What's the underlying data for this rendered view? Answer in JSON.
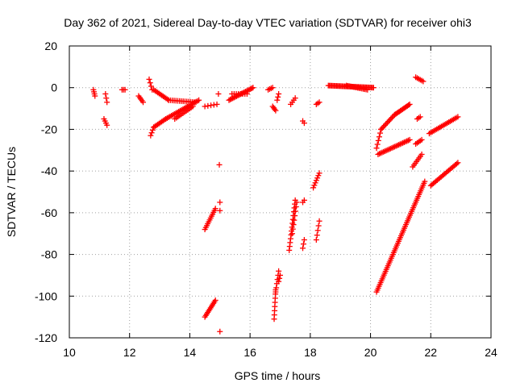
{
  "chart_data": {
    "type": "scatter",
    "title": "Day 362 of 2021, Sidereal Day-to-day VTEC variation (SDTVAR) for receiver ohi3",
    "xlabel": "GPS time / hours",
    "ylabel": "SDTVAR / TECUs",
    "xlim": [
      10,
      24
    ],
    "ylim": [
      -120,
      20
    ],
    "xticks": [
      "10",
      "12",
      "14",
      "16",
      "18",
      "20",
      "22",
      "24"
    ],
    "yticks": [
      "20",
      "0",
      "-20",
      "-40",
      "-60",
      "-80",
      "-100",
      "-120"
    ],
    "grid": true,
    "marker": "plus",
    "color": "#ff0000",
    "segments": [
      {
        "x0": 10.8,
        "y0": -1,
        "x1": 10.85,
        "y1": -4,
        "n": 4
      },
      {
        "x0": 11.2,
        "y0": -3,
        "x1": 11.25,
        "y1": -7,
        "n": 3
      },
      {
        "x0": 11.15,
        "y0": -15,
        "x1": 11.25,
        "y1": -18,
        "n": 4
      },
      {
        "x0": 11.75,
        "y0": -1,
        "x1": 11.85,
        "y1": -1,
        "n": 3
      },
      {
        "x0": 12.3,
        "y0": -4,
        "x1": 12.45,
        "y1": -7,
        "n": 5
      },
      {
        "x0": 12.65,
        "y0": 4,
        "x1": 12.75,
        "y1": -1,
        "n": 4
      },
      {
        "x0": 12.8,
        "y0": -1,
        "x1": 13.3,
        "y1": -6,
        "n": 12
      },
      {
        "x0": 13.3,
        "y0": -6,
        "x1": 14.2,
        "y1": -7,
        "n": 16
      },
      {
        "x0": 12.7,
        "y0": -23,
        "x1": 12.8,
        "y1": -19,
        "n": 4
      },
      {
        "x0": 12.8,
        "y0": -19,
        "x1": 13.2,
        "y1": -15,
        "n": 10
      },
      {
        "x0": 13.2,
        "y0": -15,
        "x1": 14.3,
        "y1": -6,
        "n": 24
      },
      {
        "x0": 13.5,
        "y0": -15,
        "x1": 14.1,
        "y1": -9,
        "n": 12
      },
      {
        "x0": 14.5,
        "y0": -9,
        "x1": 14.9,
        "y1": -8,
        "n": 5
      },
      {
        "x0": 14.95,
        "y0": -3,
        "x1": 14.95,
        "y1": -3,
        "n": 1
      },
      {
        "x0": 15.3,
        "y0": -6,
        "x1": 16.1,
        "y1": 0,
        "n": 20
      },
      {
        "x0": 15.4,
        "y0": -3,
        "x1": 15.9,
        "y1": -3,
        "n": 8
      },
      {
        "x0": 16.6,
        "y0": -1,
        "x1": 16.75,
        "y1": 0,
        "n": 4
      },
      {
        "x0": 16.75,
        "y0": -9,
        "x1": 16.85,
        "y1": -11,
        "n": 4
      },
      {
        "x0": 16.9,
        "y0": -6,
        "x1": 16.95,
        "y1": -3,
        "n": 3
      },
      {
        "x0": 17.35,
        "y0": -8,
        "x1": 17.5,
        "y1": -5,
        "n": 4
      },
      {
        "x0": 17.75,
        "y0": -16,
        "x1": 17.8,
        "y1": -17,
        "n": 2
      },
      {
        "x0": 18.2,
        "y0": -8,
        "x1": 18.3,
        "y1": -7,
        "n": 3
      },
      {
        "x0": 18.6,
        "y0": 1,
        "x1": 20.1,
        "y1": 0,
        "n": 40
      },
      {
        "x0": 19.2,
        "y0": 1,
        "x1": 19.9,
        "y1": -1,
        "n": 16
      },
      {
        "x0": 20.2,
        "y0": -29,
        "x1": 20.35,
        "y1": -20,
        "n": 6
      },
      {
        "x0": 20.35,
        "y0": -20,
        "x1": 20.8,
        "y1": -13,
        "n": 12
      },
      {
        "x0": 20.8,
        "y0": -13,
        "x1": 21.3,
        "y1": -8,
        "n": 14
      },
      {
        "x0": 20.25,
        "y0": -32,
        "x1": 21.3,
        "y1": -25,
        "n": 24
      },
      {
        "x0": 21.5,
        "y0": 5,
        "x1": 21.75,
        "y1": 3,
        "n": 6
      },
      {
        "x0": 21.55,
        "y0": -15,
        "x1": 21.65,
        "y1": -14,
        "n": 3
      },
      {
        "x0": 21.4,
        "y0": -38,
        "x1": 21.7,
        "y1": -32,
        "n": 8
      },
      {
        "x0": 21.5,
        "y0": -27,
        "x1": 21.7,
        "y1": -25,
        "n": 5
      },
      {
        "x0": 21.95,
        "y0": -22,
        "x1": 22.9,
        "y1": -14,
        "n": 20
      },
      {
        "x0": 22.0,
        "y0": -47,
        "x1": 22.9,
        "y1": -36,
        "n": 22
      },
      {
        "x0": 20.2,
        "y0": -98,
        "x1": 21.8,
        "y1": -45,
        "n": 60
      },
      {
        "x0": 14.5,
        "y0": -68,
        "x1": 14.85,
        "y1": -58,
        "n": 12
      },
      {
        "x0": 14.5,
        "y0": -110,
        "x1": 14.85,
        "y1": -102,
        "n": 12
      },
      {
        "x0": 14.98,
        "y0": -37,
        "x1": 14.98,
        "y1": -37,
        "n": 1
      },
      {
        "x0": 15.0,
        "y0": -55,
        "x1": 15.0,
        "y1": -59,
        "n": 2
      },
      {
        "x0": 15.0,
        "y0": -117,
        "x1": 15.0,
        "y1": -117,
        "n": 1
      },
      {
        "x0": 16.8,
        "y0": -111,
        "x1": 16.85,
        "y1": -97,
        "n": 8
      },
      {
        "x0": 16.85,
        "y0": -98,
        "x1": 16.95,
        "y1": -88,
        "n": 6
      },
      {
        "x0": 16.95,
        "y0": -93,
        "x1": 17.0,
        "y1": -90,
        "n": 3
      },
      {
        "x0": 17.3,
        "y0": -78,
        "x1": 17.5,
        "y1": -54,
        "n": 14
      },
      {
        "x0": 17.4,
        "y0": -70,
        "x1": 17.55,
        "y1": -55,
        "n": 8
      },
      {
        "x0": 17.75,
        "y0": -77,
        "x1": 17.8,
        "y1": -73,
        "n": 3
      },
      {
        "x0": 17.75,
        "y0": -55,
        "x1": 17.8,
        "y1": -54,
        "n": 2
      },
      {
        "x0": 18.1,
        "y0": -48,
        "x1": 18.3,
        "y1": -41,
        "n": 7
      },
      {
        "x0": 18.2,
        "y0": -73,
        "x1": 18.3,
        "y1": -64,
        "n": 5
      }
    ]
  }
}
